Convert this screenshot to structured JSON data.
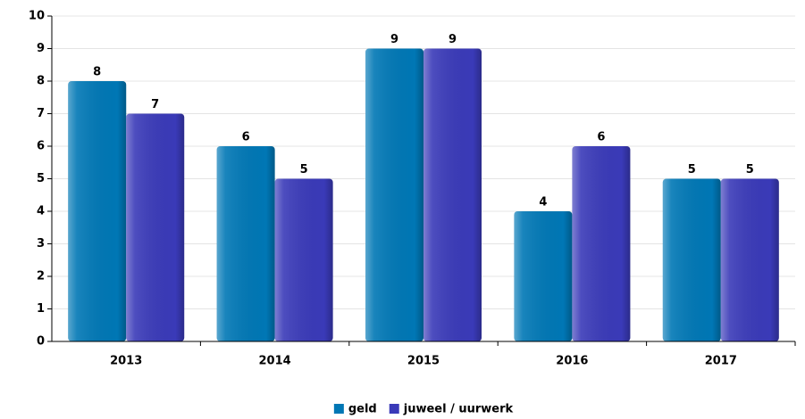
{
  "chart_data": {
    "type": "bar",
    "categories": [
      "2013",
      "2014",
      "2015",
      "2016",
      "2017"
    ],
    "series": [
      {
        "name": "geld",
        "color": "#0077b5",
        "values": [
          8,
          6,
          9,
          4,
          5
        ]
      },
      {
        "name": "juweel / uurwerk",
        "color": "#3a3ab8",
        "values": [
          7,
          5,
          9,
          6,
          5
        ]
      }
    ],
    "ylim": [
      0,
      10
    ],
    "yticks": [
      0,
      1,
      2,
      3,
      4,
      5,
      6,
      7,
      8,
      9,
      10
    ],
    "grid": true,
    "legend": "bottom"
  }
}
